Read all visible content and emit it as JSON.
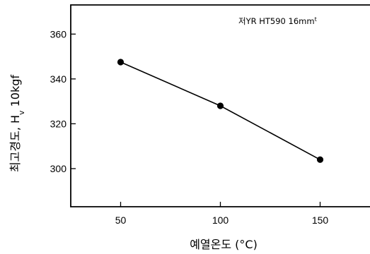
{
  "chart_data": {
    "type": "line",
    "annotation": {
      "text": "저YR HT590 16mm",
      "superscript": "t"
    },
    "xlabel": "예열온도 (°C)",
    "ylabel": {
      "text": "최고경도,  H",
      "subscript": "v",
      "suffix": " 10kgf"
    },
    "xlim": [
      25,
      175
    ],
    "ylim": [
      283,
      373
    ],
    "x_ticks": [
      50,
      100,
      150
    ],
    "y_ticks": [
      300,
      320,
      340,
      360
    ],
    "grid": false,
    "series": [
      {
        "x": [
          50,
          100,
          150
        ],
        "values": [
          347.5,
          328,
          304
        ]
      }
    ],
    "colors": {
      "line": "#000000",
      "marker": "#000000",
      "axis": "#000000"
    }
  }
}
